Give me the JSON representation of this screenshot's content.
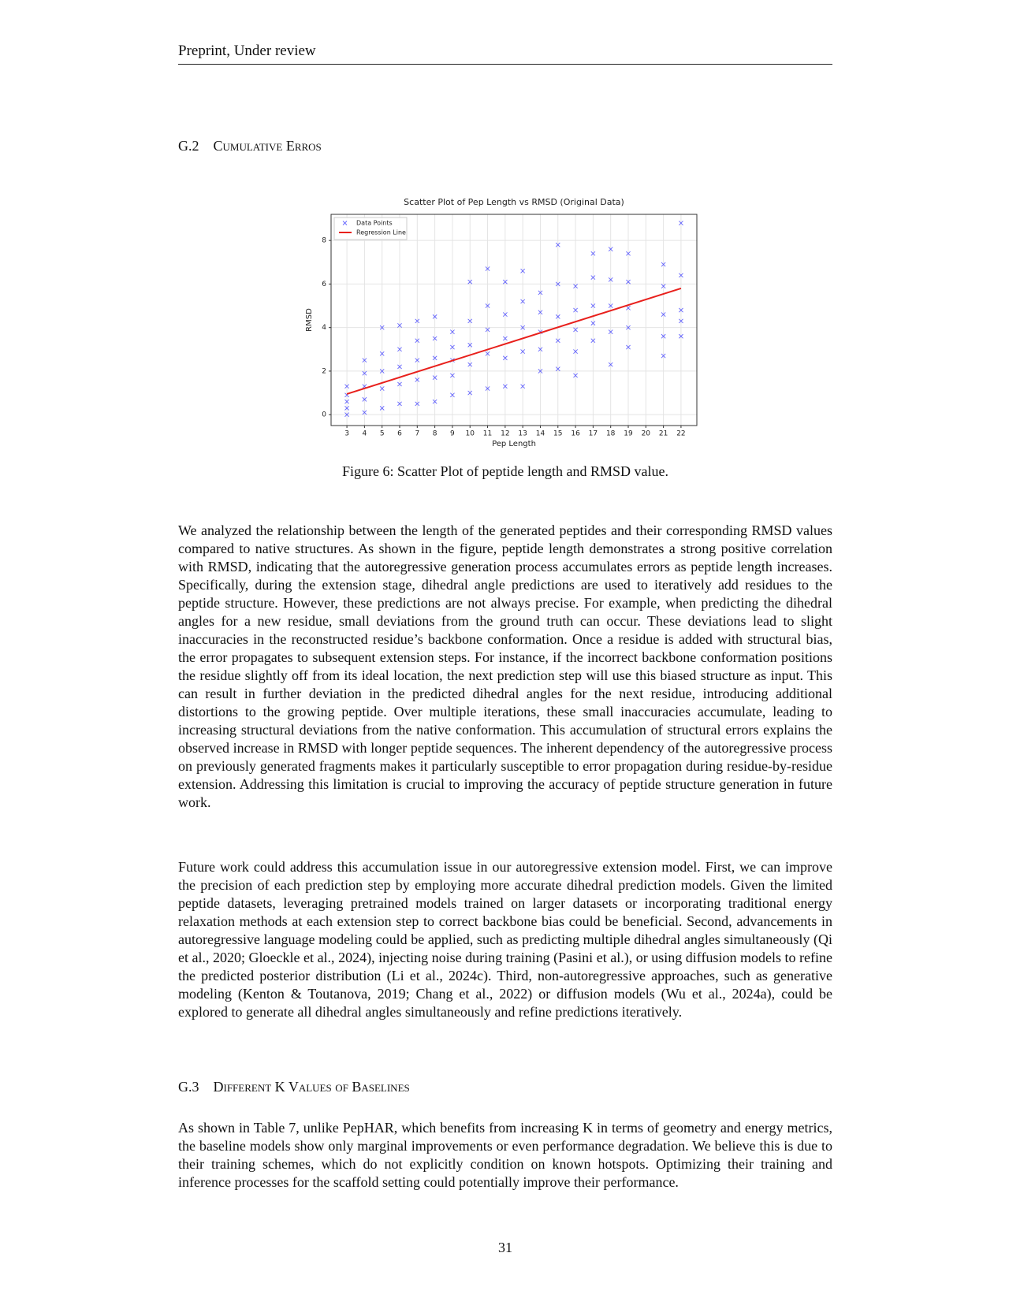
{
  "header": "Preprint, Under review",
  "section_g2": {
    "number": "G.2",
    "title": "Cumulative Erros"
  },
  "figure": {
    "caption": "Figure 6: Scatter Plot of peptide length and RMSD value.",
    "chart_data": {
      "type": "scatter",
      "title": "Scatter Plot of Pep Length vs RMSD (Original Data)",
      "x_label": "Pep Length",
      "y_label": "RMSD",
      "xlim": [
        2.1,
        22.9
      ],
      "xticks": [
        3,
        4,
        5,
        6,
        7,
        8,
        9,
        10,
        11,
        12,
        13,
        14,
        15,
        16,
        17,
        18,
        19,
        20,
        21,
        22
      ],
      "ylim": [
        -0.5,
        9.2
      ],
      "yticks": [
        0,
        2,
        4,
        6,
        8
      ],
      "grid": true,
      "legend": "upper left",
      "series": [
        {
          "name": "Data Points",
          "color": "#0000ff",
          "marker": "x",
          "x": [
            3,
            3,
            3,
            3,
            3,
            4,
            4,
            4,
            4,
            4,
            5,
            5,
            5,
            5,
            5,
            6,
            6,
            6,
            6,
            6,
            7,
            7,
            7,
            7,
            7,
            8,
            8,
            8,
            8,
            8,
            9,
            9,
            9,
            9,
            9,
            10,
            10,
            10,
            10,
            10,
            11,
            11,
            11,
            11,
            11,
            12,
            12,
            12,
            12,
            12,
            13,
            13,
            13,
            13,
            13,
            14,
            14,
            14,
            14,
            14,
            15,
            15,
            15,
            15,
            15,
            16,
            16,
            16,
            16,
            16,
            17,
            17,
            17,
            17,
            17,
            18,
            18,
            18,
            18,
            18,
            19,
            19,
            19,
            19,
            19,
            21,
            21,
            21,
            21,
            21,
            22,
            22,
            22,
            22,
            22
          ],
          "values": [
            0.0,
            0.3,
            0.6,
            0.9,
            1.3,
            0.1,
            0.7,
            1.3,
            1.9,
            2.5,
            0.3,
            1.2,
            2.0,
            2.8,
            4.0,
            0.5,
            1.4,
            2.2,
            3.0,
            4.1,
            0.5,
            1.6,
            2.5,
            3.4,
            4.3,
            0.6,
            1.7,
            2.6,
            3.5,
            4.5,
            0.9,
            1.8,
            2.5,
            3.1,
            3.8,
            1.0,
            2.3,
            3.2,
            4.3,
            6.1,
            1.2,
            2.8,
            3.9,
            5.0,
            6.7,
            1.3,
            2.6,
            3.5,
            4.6,
            6.1,
            1.3,
            2.9,
            4.0,
            5.2,
            6.6,
            2.0,
            3.0,
            3.8,
            4.7,
            5.6,
            2.1,
            3.4,
            4.5,
            6.0,
            7.8,
            1.8,
            2.9,
            3.9,
            4.8,
            5.9,
            3.4,
            4.2,
            5.0,
            6.3,
            7.4,
            2.3,
            3.8,
            5.0,
            6.2,
            7.6,
            3.1,
            4.0,
            4.9,
            6.1,
            7.4,
            2.7,
            3.6,
            4.6,
            5.9,
            6.9,
            3.6,
            4.3,
            4.8,
            6.4,
            8.8
          ]
        },
        {
          "name": "Regression Line",
          "color": "#e8201c",
          "marker": "line",
          "x": [
            3,
            22
          ],
          "values": [
            0.95,
            5.8
          ]
        }
      ]
    }
  },
  "paragraphs": [
    "We analyzed the relationship between the length of the generated peptides and their corresponding RMSD values compared to native structures. As shown in the figure, peptide length demonstrates a strong positive correlation with RMSD, indicating that the autoregressive generation process accumulates errors as peptide length increases. Specifically, during the extension stage, dihedral angle predictions are used to iteratively add residues to the peptide structure. However, these predictions are not always precise. For example, when predicting the dihedral angles for a new residue, small deviations from the ground truth can occur. These deviations lead to slight inaccuracies in the reconstructed residue’s backbone conformation. Once a residue is added with structural bias, the error propagates to subsequent extension steps. For instance, if the incorrect backbone conformation positions the residue slightly off from its ideal location, the next prediction step will use this biased structure as input. This can result in further deviation in the predicted dihedral angles for the next residue, introducing additional distortions to the growing peptide. Over multiple iterations, these small inaccuracies accumulate, leading to increasing structural deviations from the native conformation. This accumulation of structural errors explains the observed increase in RMSD with longer peptide sequences. The inherent dependency of the autoregressive process on previously generated fragments makes it particularly susceptible to error propagation during residue-by-residue extension. Addressing this limitation is crucial to improving the accuracy of peptide structure generation in future work.",
    "Future work could address this accumulation issue in our autoregressive extension model. First, we can improve the precision of each prediction step by employing more accurate dihedral prediction models. Given the limited peptide datasets, leveraging pretrained models trained on larger datasets or incorporating traditional energy relaxation methods at each extension step to correct backbone bias could be beneficial. Second, advancements in autoregressive language modeling could be applied, such as predicting multiple dihedral angles simultaneously (Qi et al., 2020; Gloeckle et al., 2024), injecting noise during training (Pasini et al.), or using diffusion models to refine the predicted posterior distribution (Li et al., 2024c). Third, non-autoregressive approaches, such as generative modeling (Kenton & Toutanova, 2019; Chang et al., 2022) or diffusion models (Wu et al., 2024a), could be explored to generate all dihedral angles simultaneously and refine predictions iteratively."
  ],
  "section_g3": {
    "number": "G.3",
    "title": "Different K Values of Baselines"
  },
  "paragraph_g3": "As shown in Table 7, unlike PepHAR, which benefits from increasing K in terms of geometry and energy metrics, the baseline models show only marginal improvements or even performance degradation. We believe this is due to their training schemes, which do not explicitly condition on known hotspots. Optimizing their training and inference processes for the scaffold setting could potentially improve their performance.",
  "page_number": "31"
}
